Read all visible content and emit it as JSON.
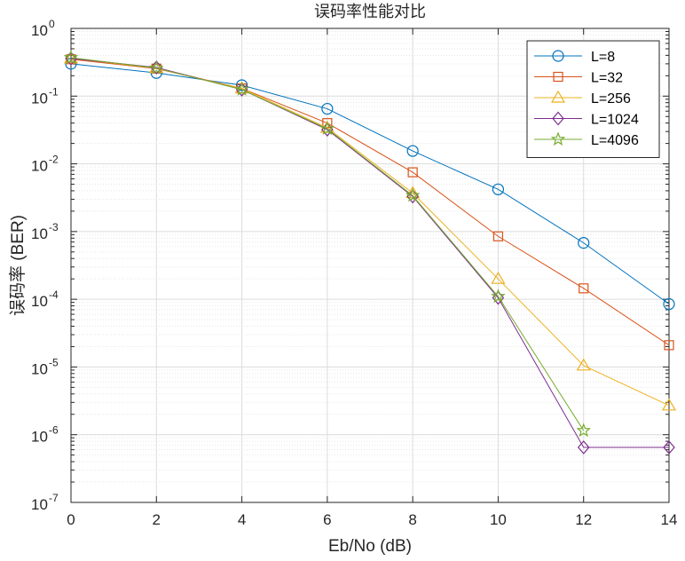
{
  "chart_data": {
    "type": "line",
    "title": "误码率性能对比",
    "xlabel": "Eb/No (dB)",
    "ylabel": "误码率 (BER)",
    "x_scale": "linear",
    "y_scale": "log",
    "xlim": [
      0,
      14
    ],
    "ylim": [
      1e-07,
      1
    ],
    "x_ticks": [
      "0",
      "2",
      "4",
      "6",
      "8",
      "10",
      "12",
      "14"
    ],
    "y_ticks": [
      {
        "base": "10",
        "exp": "0"
      },
      {
        "base": "10",
        "exp": "-1"
      },
      {
        "base": "10",
        "exp": "-2"
      },
      {
        "base": "10",
        "exp": "-3"
      },
      {
        "base": "10",
        "exp": "-4"
      },
      {
        "base": "10",
        "exp": "-5"
      },
      {
        "base": "10",
        "exp": "-6"
      },
      {
        "base": "10",
        "exp": "-7"
      }
    ],
    "grid": true,
    "minor_grid": true,
    "legend_position": "top-right",
    "series": [
      {
        "name": "L=8",
        "color": "#0072BD",
        "marker": "circle",
        "x": [
          0,
          2,
          4,
          6,
          8,
          10,
          12,
          14
        ],
        "y": [
          0.3,
          0.22,
          0.145,
          0.065,
          0.0155,
          0.0042,
          0.00068,
          8.5e-05
        ]
      },
      {
        "name": "L=32",
        "color": "#D95319",
        "marker": "square",
        "x": [
          0,
          2,
          4,
          6,
          8,
          10,
          12,
          14
        ],
        "y": [
          0.35,
          0.255,
          0.13,
          0.04,
          0.0075,
          0.00085,
          0.000145,
          2.1e-05
        ]
      },
      {
        "name": "L=256",
        "color": "#EDB120",
        "marker": "triangle",
        "x": [
          0,
          2,
          4,
          6,
          8,
          10,
          12,
          14
        ],
        "y": [
          0.36,
          0.26,
          0.13,
          0.034,
          0.0037,
          0.0002,
          1.05e-05,
          2.7e-06
        ]
      },
      {
        "name": "L=1024",
        "color": "#7E2F8E",
        "marker": "diamond",
        "x": [
          0,
          2,
          4,
          6,
          8,
          10,
          12,
          14
        ],
        "y": [
          0.36,
          0.265,
          0.125,
          0.032,
          0.0033,
          0.000105,
          6.5e-07,
          6.5e-07
        ]
      },
      {
        "name": "L=4096",
        "color": "#77AC30",
        "marker": "star",
        "x": [
          0,
          2,
          4,
          6,
          8,
          10,
          12
        ],
        "y": [
          0.37,
          0.26,
          0.125,
          0.033,
          0.0034,
          0.00011,
          1.15e-06
        ]
      }
    ]
  }
}
